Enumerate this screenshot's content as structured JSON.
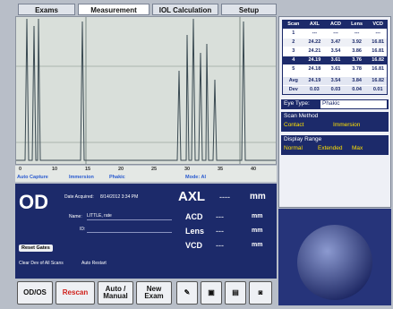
{
  "tabs": [
    "Exams",
    "Measurement",
    "IOL Calculation",
    "Setup"
  ],
  "waveform": {
    "axis_labels": [
      "0",
      "10",
      "15",
      "20",
      "25",
      "30",
      "35",
      "40"
    ],
    "status": [
      "Auto Capture",
      "Immersion",
      "Phakic",
      "Mode: AI"
    ]
  },
  "scan_table": {
    "header": [
      "Scan",
      "AXL",
      "ACD",
      "Lens",
      "VCD"
    ],
    "rows": [
      [
        "1",
        "---",
        "---",
        "---",
        "---"
      ],
      [
        "2",
        "24.22",
        "3.47",
        "3.92",
        "16.81"
      ],
      [
        "3",
        "24.21",
        "3.54",
        "3.86",
        "16.81"
      ],
      [
        "4",
        "24.19",
        "3.61",
        "3.76",
        "16.82"
      ],
      [
        "5",
        "24.18",
        "3.61",
        "3.78",
        "16.81"
      ]
    ],
    "selected_row": 3,
    "summary": [
      [
        "Avg",
        "24.19",
        "3.54",
        "3.84",
        "16.82"
      ],
      [
        "Dev",
        "0.03",
        "0.03",
        "0.04",
        "0.01"
      ]
    ]
  },
  "eye_type": {
    "label": "Eye Type:",
    "value": "Phakic"
  },
  "scan_method": {
    "title": "Scan Method",
    "options": [
      "Contact",
      "Immersion"
    ]
  },
  "display_range": {
    "title": "Display Range",
    "options": [
      "Normal",
      "Extended",
      "Max"
    ]
  },
  "patient": {
    "eye": "OD",
    "date_label": "Date Acquired:",
    "date": "8/14/2012 3:34 PM",
    "name_label": "Name:",
    "name": "LITTLE, rate",
    "id_label": "ID:",
    "reset": "Reset Gates",
    "options": [
      "Clear Dev of All Scans",
      "Auto Restart"
    ]
  },
  "measurements": [
    {
      "label": "AXL",
      "value": "----",
      "unit": "mm"
    },
    {
      "label": "ACD",
      "value": "---",
      "unit": "mm"
    },
    {
      "label": "Lens",
      "value": "---",
      "unit": "mm"
    },
    {
      "label": "VCD",
      "value": "---",
      "unit": "mm"
    }
  ],
  "buttons": [
    "OD/OS",
    "Rescan",
    "Auto / Manual",
    "New Exam"
  ]
}
